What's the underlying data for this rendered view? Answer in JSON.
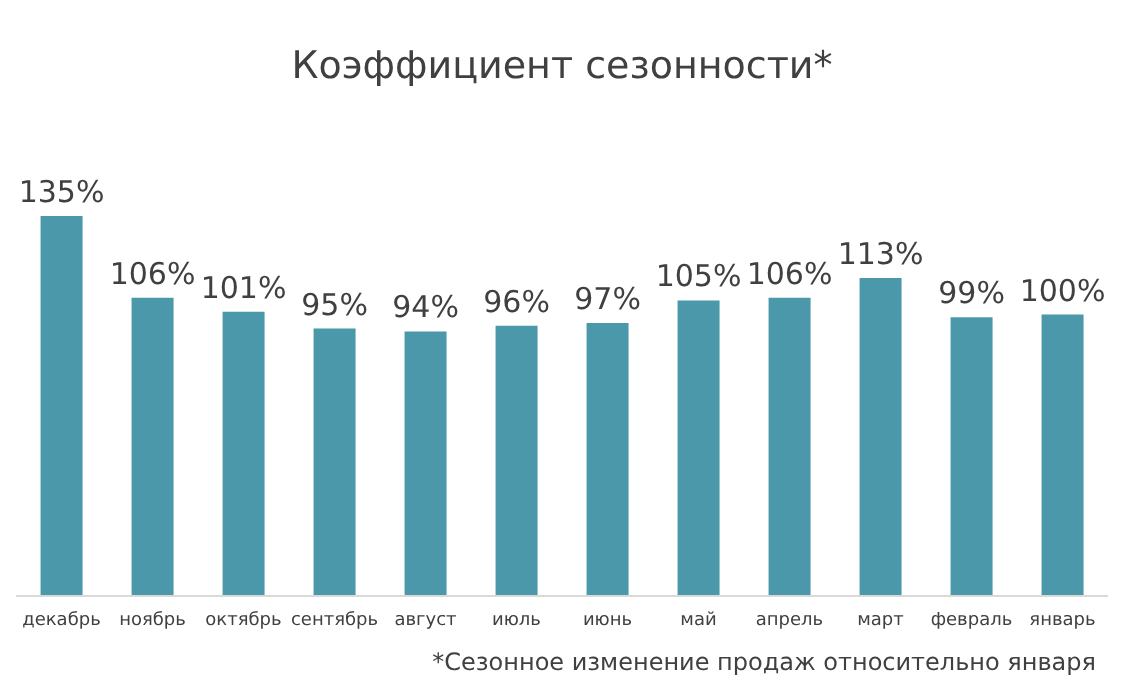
{
  "chart_data": {
    "type": "bar",
    "title": "Коэффициент сезонности*",
    "annotations": [
      "*Сезонное изменение продаж относительно января"
    ],
    "categories": [
      "декабрь",
      "ноябрь",
      "октябрь",
      "сентябрь",
      "август",
      "июль",
      "июнь",
      "май",
      "апрель",
      "март",
      "февраль",
      "январь"
    ],
    "values": [
      135,
      106,
      101,
      95,
      94,
      96,
      97,
      105,
      106,
      113,
      99,
      100
    ],
    "value_labels": [
      "135%",
      "106%",
      "101%",
      "95%",
      "94%",
      "96%",
      "97%",
      "105%",
      "106%",
      "113%",
      "99%",
      "100%"
    ],
    "color": "#4a98a9",
    "grid": false,
    "legend": false
  }
}
